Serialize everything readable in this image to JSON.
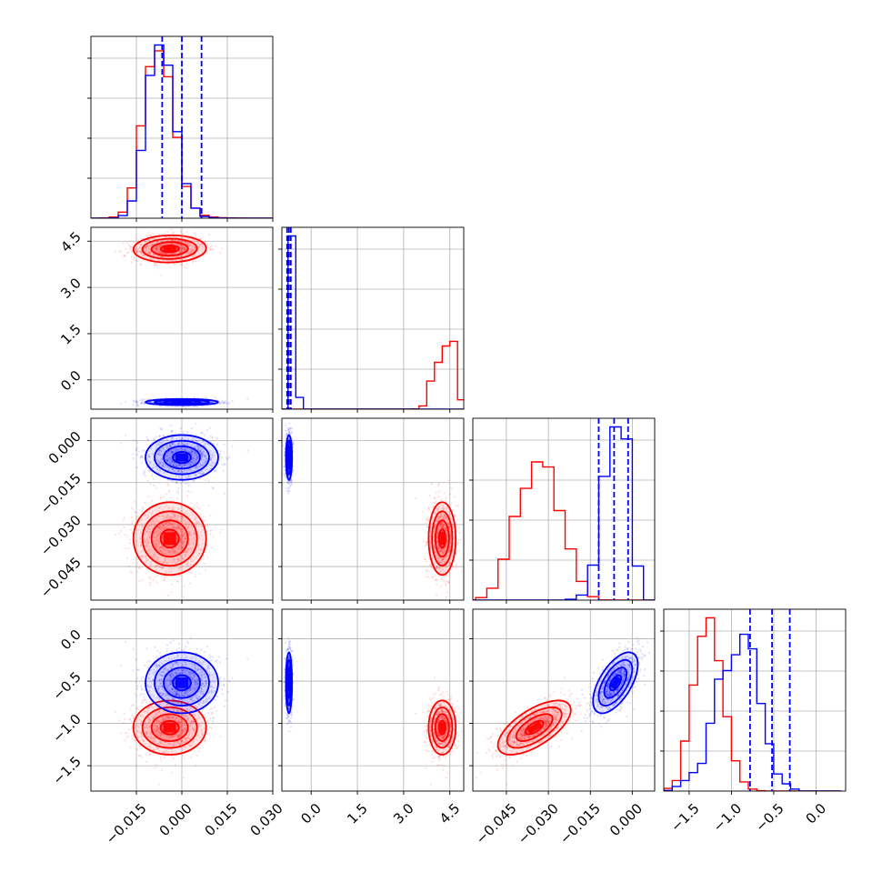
{
  "chart_data": {
    "type": "corner",
    "grid": true,
    "series": [
      {
        "name": "",
        "color": "#ff0000",
        "means": [
          -0.004,
          4.25,
          -0.035,
          -1.05
        ],
        "sds": [
          0.006,
          0.22,
          0.0065,
          0.16
        ],
        "corr01": 0.05,
        "corr23": 0.65
      },
      {
        "name": "",
        "color": "#0000ff",
        "means": [
          0.0,
          -0.72,
          -0.006,
          -0.52
        ],
        "sds": [
          0.006,
          0.05,
          0.004,
          0.18
        ],
        "corr01": 0.0,
        "corr23": 0.6
      }
    ],
    "quantile_lines_blue": [
      [
        -0.0065,
        0.0,
        0.0065
      ],
      [
        -0.78,
        -0.72,
        -0.66
      ],
      [
        -0.012,
        -0.0065,
        -0.0015
      ],
      [
        -0.78,
        -0.52,
        -0.31
      ]
    ],
    "histograms": {
      "0": {
        "edges": [
          -0.03,
          -0.027,
          -0.024,
          -0.021,
          -0.018,
          -0.015,
          -0.012,
          -0.009,
          -0.006,
          -0.003,
          0.0,
          0.003,
          0.006,
          0.009,
          0.012,
          0.015,
          0.018,
          0.021,
          0.024,
          0.027,
          0.03
        ],
        "red": [
          0,
          2,
          8,
          42,
          210,
          640,
          1050,
          1160,
          980,
          560,
          220,
          70,
          20,
          8,
          3,
          2,
          1,
          0,
          0,
          0
        ],
        "blue": [
          0,
          0,
          2,
          18,
          120,
          470,
          990,
          1200,
          1060,
          600,
          240,
          70,
          12,
          4,
          1,
          0,
          0,
          0,
          0,
          0
        ]
      },
      "1": {
        "edges": [
          -1.0,
          -0.75,
          -0.5,
          -0.25,
          0.0,
          0.25,
          0.5,
          0.75,
          1.0,
          1.25,
          1.5,
          1.75,
          2.0,
          2.25,
          2.5,
          2.75,
          3.0,
          3.25,
          3.5,
          3.75,
          4.0,
          4.25,
          4.5,
          4.75,
          5.0
        ],
        "red": [
          0,
          0,
          0,
          0,
          0,
          0,
          0,
          0,
          0,
          0,
          0,
          0,
          0,
          0,
          0,
          0,
          0,
          5,
          70,
          600,
          1000,
          1350,
          1450,
          200
        ],
        "blue": [
          0,
          3700,
          250,
          0,
          0,
          0,
          0,
          0,
          0,
          0,
          0,
          0,
          0,
          0,
          0,
          0,
          0,
          0,
          0,
          0,
          0,
          0,
          0,
          0
        ]
      },
      "2": {
        "edges": [
          -0.06,
          -0.056,
          -0.052,
          -0.048,
          -0.044,
          -0.04,
          -0.036,
          -0.032,
          -0.028,
          -0.024,
          -0.02,
          -0.016,
          -0.012,
          -0.008,
          -0.004,
          0.0,
          0.004,
          0.008
        ],
        "red": [
          0,
          30,
          140,
          480,
          980,
          1310,
          1620,
          1560,
          1050,
          600,
          220,
          40,
          2,
          0,
          0,
          0,
          0
        ],
        "blue": [
          0,
          0,
          0,
          0,
          0,
          0,
          0,
          0,
          0,
          10,
          60,
          410,
          1450,
          2030,
          1890,
          400,
          0
        ]
      },
      "3": {
        "edges": [
          -1.9,
          -1.8,
          -1.7,
          -1.6,
          -1.5,
          -1.4,
          -1.3,
          -1.2,
          -1.1,
          -1.0,
          -0.9,
          -0.8,
          -0.7,
          -0.6,
          -0.5,
          -0.4,
          -0.3,
          -0.2,
          -0.1,
          0.0,
          0.1,
          0.2,
          0.3
        ],
        "red": [
          0,
          40,
          160,
          760,
          1610,
          2350,
          2630,
          1980,
          1130,
          460,
          140,
          30,
          6,
          0,
          0,
          0,
          0,
          0,
          0,
          0,
          0,
          0
        ],
        "blue": [
          0,
          10,
          70,
          160,
          280,
          420,
          1030,
          1700,
          1830,
          2070,
          2380,
          2160,
          1330,
          720,
          260,
          110,
          30,
          0,
          0,
          0,
          0,
          0
        ]
      }
    },
    "axes": [
      {
        "range": [
          -0.03,
          0.03
        ],
        "ticks": [
          -0.015,
          0.0,
          0.015,
          0.03
        ],
        "tick_labels": [
          "−0.015",
          "0.000",
          "0.015",
          "0.030"
        ]
      },
      {
        "range": [
          -0.95,
          4.95
        ],
        "ticks": [
          0.0,
          1.5,
          3.0,
          4.5
        ],
        "tick_labels": [
          "0.0",
          "1.5",
          "3.0",
          "4.5"
        ]
      },
      {
        "range": [
          -0.057,
          0.008
        ],
        "ticks": [
          -0.045,
          -0.03,
          -0.015,
          0.0
        ],
        "tick_labels": [
          "−0.045",
          "−0.030",
          "−0.015",
          "0.000"
        ]
      },
      {
        "range": [
          -1.8,
          0.35
        ],
        "ticks": [
          -1.5,
          -1.0,
          -0.5,
          0.0
        ],
        "tick_labels": [
          "−1.5",
          "−1.0",
          "−0.5",
          "0.0"
        ]
      }
    ]
  }
}
